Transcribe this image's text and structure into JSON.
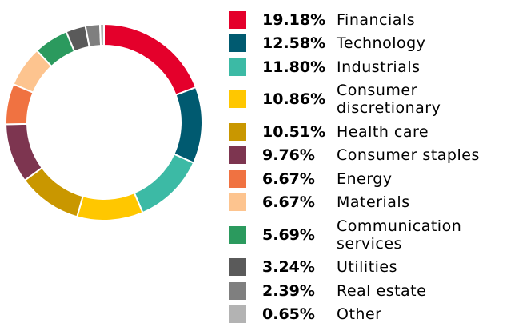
{
  "chart_data": {
    "type": "pie",
    "donut": true,
    "categories": [
      "Financials",
      "Technology",
      "Industrials",
      "Consumer discretionary",
      "Health care",
      "Consumer staples",
      "Energy",
      "Materials",
      "Communication services",
      "Utilities",
      "Real estate",
      "Other"
    ],
    "values": [
      19.18,
      12.58,
      11.8,
      10.86,
      10.51,
      9.76,
      6.67,
      6.67,
      5.69,
      3.24,
      2.39,
      0.65
    ],
    "value_labels": [
      "19.18%",
      "12.58%",
      "11.80%",
      "10.86%",
      "10.51%",
      "9.76%",
      "6.67%",
      "6.67%",
      "5.69%",
      "3.24%",
      "2.39%",
      "0.65%"
    ],
    "colors": [
      "#e4002b",
      "#005a70",
      "#3cbaa5",
      "#ffc700",
      "#c99700",
      "#7d3550",
      "#f07241",
      "#fdc48f",
      "#2b9a5e",
      "#5a5a5a",
      "#7f7f7f",
      "#b3b3b3"
    ],
    "legend": "right"
  }
}
